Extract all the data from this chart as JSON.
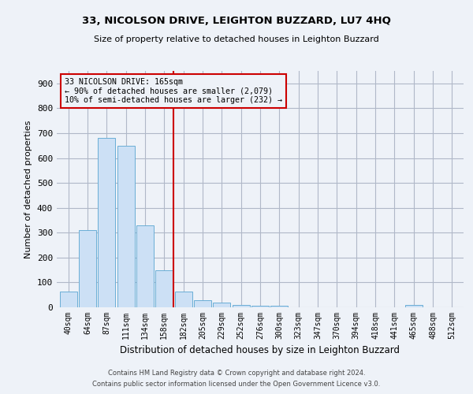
{
  "title": "33, NICOLSON DRIVE, LEIGHTON BUZZARD, LU7 4HQ",
  "subtitle": "Size of property relative to detached houses in Leighton Buzzard",
  "xlabel": "Distribution of detached houses by size in Leighton Buzzard",
  "ylabel": "Number of detached properties",
  "footnote1": "Contains HM Land Registry data © Crown copyright and database right 2024.",
  "footnote2": "Contains public sector information licensed under the Open Government Licence v3.0.",
  "bar_labels": [
    "40sqm",
    "64sqm",
    "87sqm",
    "111sqm",
    "134sqm",
    "158sqm",
    "182sqm",
    "205sqm",
    "229sqm",
    "252sqm",
    "276sqm",
    "300sqm",
    "323sqm",
    "347sqm",
    "370sqm",
    "394sqm",
    "418sqm",
    "441sqm",
    "465sqm",
    "488sqm",
    "512sqm"
  ],
  "bar_values": [
    62,
    310,
    680,
    650,
    330,
    148,
    63,
    30,
    18,
    10,
    7,
    6,
    1,
    0,
    0,
    0,
    0,
    0,
    10,
    0,
    0
  ],
  "bar_color": "#cce0f5",
  "bar_edgecolor": "#6aaed6",
  "grid_color": "#b0b8c8",
  "bg_color": "#eef2f8",
  "vline_x": 5.5,
  "vline_color": "#cc0000",
  "annotation_text": "33 NICOLSON DRIVE: 165sqm\n← 90% of detached houses are smaller (2,079)\n10% of semi-detached houses are larger (232) →",
  "annotation_box_color": "#cc0000",
  "ylim": [
    0,
    950
  ],
  "yticks": [
    0,
    100,
    200,
    300,
    400,
    500,
    600,
    700,
    800,
    900
  ]
}
